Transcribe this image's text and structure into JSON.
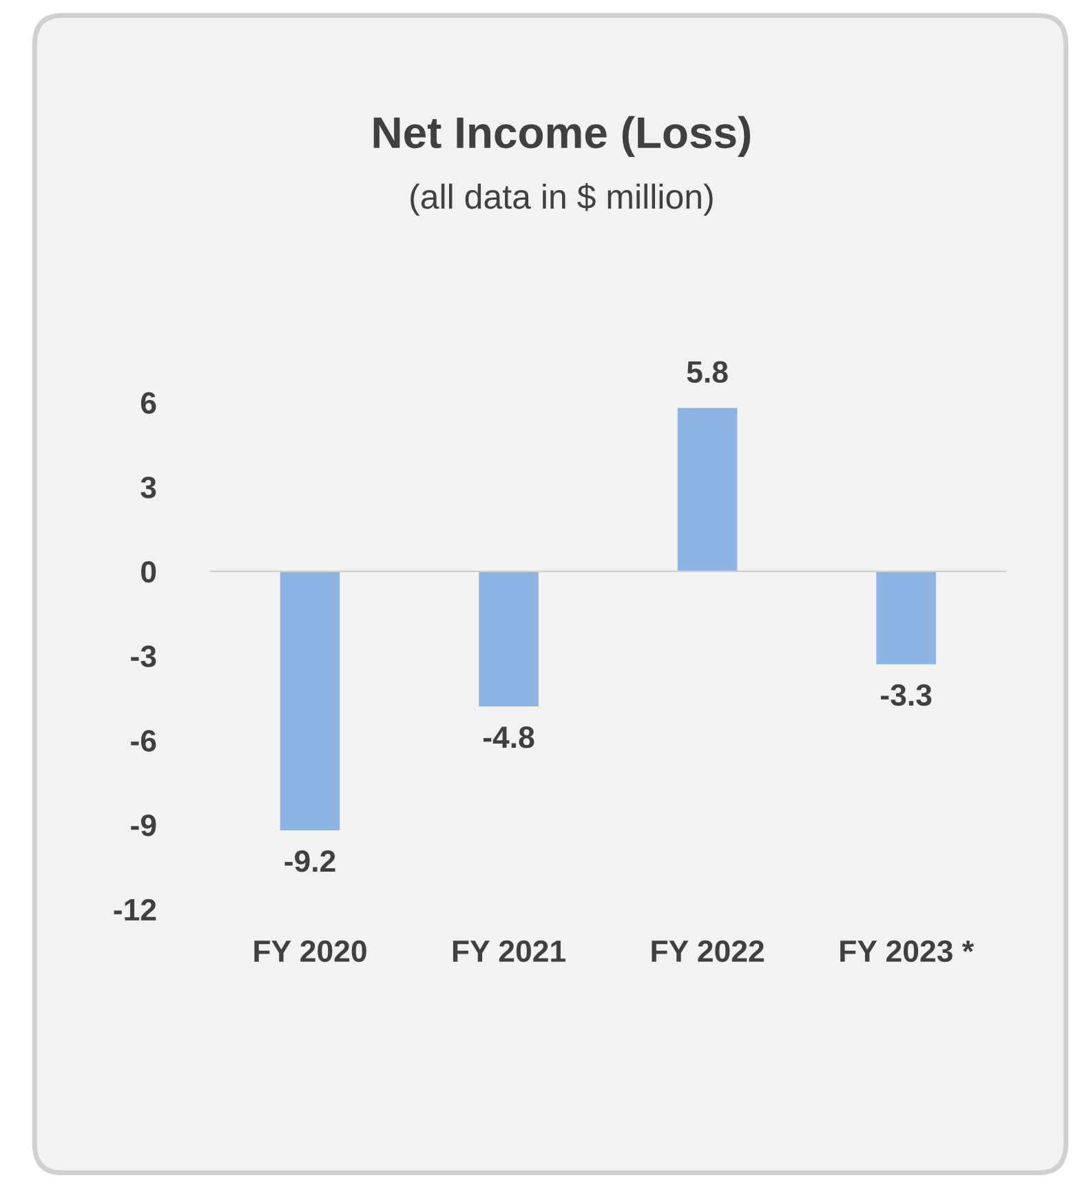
{
  "chart_data": {
    "type": "bar",
    "title": "Net Income (Loss)",
    "subtitle": "(all data in $ million)",
    "categories": [
      "FY 2020",
      "FY 2021",
      "FY 2022",
      "FY 2023 *"
    ],
    "values": [
      -9.2,
      -4.8,
      5.8,
      -3.3
    ],
    "color": "#8eb4e3",
    "ylim": [
      -12,
      6
    ],
    "yticks": [
      -12,
      -9,
      -6,
      -3,
      0,
      3,
      6
    ],
    "data_labels": true
  }
}
